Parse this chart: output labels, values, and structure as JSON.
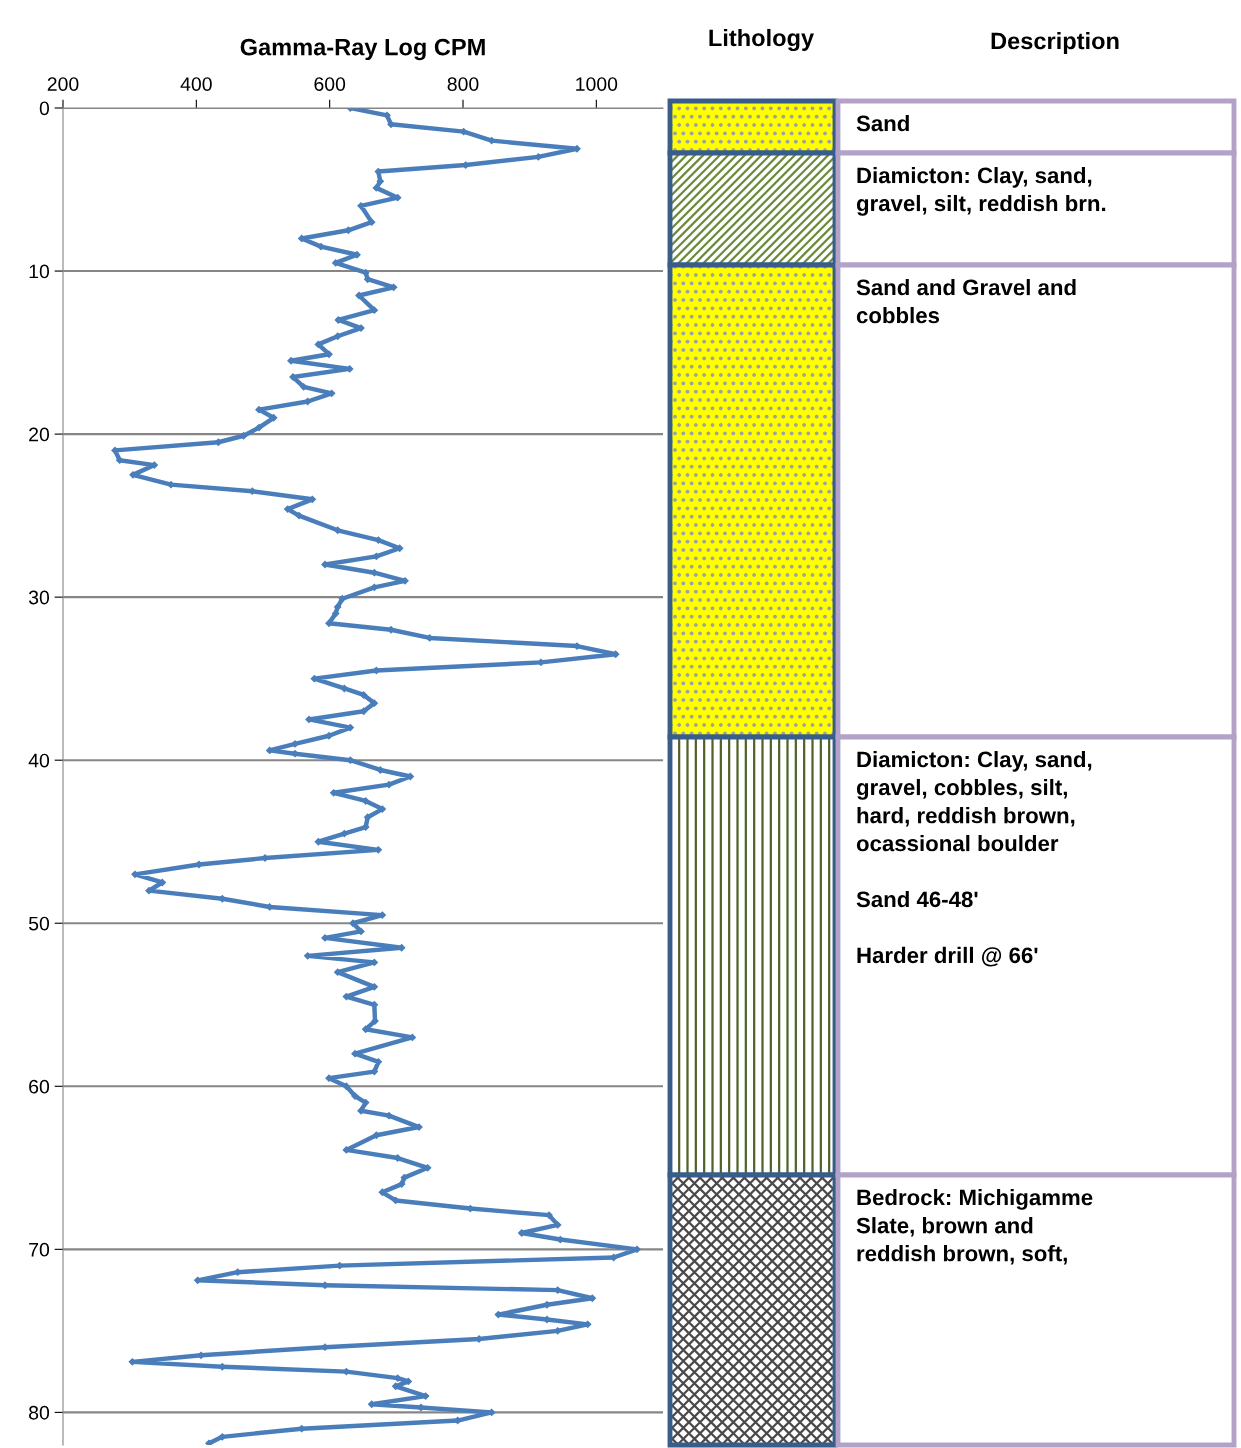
{
  "chart_data": [
    {
      "type": "line",
      "title": "Gamma-Ray Log CPM",
      "color": "#4a7ebb",
      "marker": "diamond",
      "line_style": "solid",
      "grid": "y",
      "xlim": [
        200,
        1100
      ],
      "xticks": [
        200,
        400,
        600,
        800,
        1000
      ],
      "ylim": [
        82,
        0
      ],
      "yticks": [
        0,
        10,
        20,
        30,
        40,
        50,
        60,
        70,
        80
      ],
      "x": [
        631,
        686,
        692,
        801,
        843,
        971,
        913,
        804,
        673,
        676,
        670,
        702,
        647,
        663,
        628,
        558,
        587,
        641,
        609,
        654,
        657,
        696,
        644,
        667,
        613,
        647,
        612,
        583,
        599,
        542,
        630,
        545,
        561,
        603,
        567,
        494,
        516,
        494,
        471,
        433,
        278,
        285,
        337,
        305,
        362,
        484,
        574,
        537,
        554,
        612,
        673,
        705,
        670,
        593,
        667,
        713,
        667,
        619,
        612,
        609,
        599,
        692,
        750,
        971,
        1029,
        917,
        670,
        577,
        622,
        651,
        667,
        651,
        569,
        631,
        599,
        548,
        510,
        548,
        631,
        676,
        721,
        689,
        606,
        654,
        679,
        657,
        654,
        622,
        583,
        673,
        503,
        404,
        308,
        349,
        329,
        439,
        510,
        679,
        635,
        647,
        593,
        708,
        567,
        667,
        612,
        667,
        625,
        667,
        668,
        654,
        724,
        638,
        673,
        667,
        599,
        625,
        638,
        654,
        647,
        689,
        734,
        670,
        625,
        702,
        747,
        712,
        708,
        679,
        699,
        811,
        929,
        942,
        888,
        946,
        1061,
        1026,
        615,
        462,
        402,
        593,
        942,
        994,
        926,
        853,
        926,
        987,
        942,
        824,
        593,
        407,
        304,
        439,
        625,
        702,
        718,
        699,
        744,
        663,
        737,
        843,
        792,
        558,
        439,
        419
      ],
      "values": [
        0,
        0.45,
        1.0,
        1.45,
        2.0,
        2.5,
        3.0,
        3.5,
        3.9,
        4.5,
        4.9,
        5.5,
        6.0,
        7.0,
        7.5,
        8.0,
        8.5,
        9.0,
        9.5,
        10.1,
        10.5,
        11.0,
        11.5,
        12.4,
        13.0,
        13.5,
        14.0,
        14.5,
        15.1,
        15.5,
        16.0,
        16.5,
        17.1,
        17.5,
        18.0,
        18.5,
        19.0,
        19.6,
        20.1,
        20.5,
        21.0,
        21.6,
        21.9,
        22.5,
        23.1,
        23.5,
        24.0,
        24.6,
        25.0,
        25.9,
        26.5,
        27.0,
        27.5,
        28.0,
        28.5,
        29.0,
        29.4,
        30.1,
        30.6,
        31.0,
        31.6,
        32.0,
        32.5,
        33.0,
        33.5,
        34.0,
        34.5,
        35.0,
        35.6,
        36.0,
        36.5,
        37.0,
        37.5,
        38.0,
        38.5,
        39.0,
        39.4,
        39.6,
        40.0,
        40.6,
        41.0,
        41.5,
        42.0,
        42.5,
        43.0,
        43.5,
        44.1,
        44.5,
        45.0,
        45.5,
        46.0,
        46.4,
        47.0,
        47.5,
        48.0,
        48.5,
        49.0,
        49.5,
        50.0,
        50.5,
        50.9,
        51.5,
        52.0,
        52.4,
        53.0,
        53.9,
        54.5,
        55.0,
        56.0,
        56.5,
        57.0,
        58.0,
        58.5,
        59.1,
        59.5,
        60.0,
        60.6,
        61.0,
        61.5,
        61.8,
        62.5,
        63.0,
        63.9,
        64.4,
        65.0,
        65.6,
        66.0,
        66.5,
        67.0,
        67.5,
        67.9,
        68.5,
        69.0,
        69.4,
        70.0,
        70.5,
        71.0,
        71.4,
        71.9,
        72.2,
        72.5,
        73.0,
        73.4,
        74.0,
        74.3,
        74.6,
        75.0,
        75.5,
        76.0,
        76.5,
        76.9,
        77.2,
        77.5,
        77.9,
        78.1,
        78.4,
        79.0,
        79.5,
        79.7,
        80.0,
        80.5,
        81.0,
        81.5,
        81.9
      ]
    },
    {
      "type": "other",
      "title": "Lithology"
    },
    {
      "type": "other",
      "title": "Description",
      "annotations": [
        "Sand",
        "Diamicton: Clay, sand,\ngravel, silt, reddish brn.",
        "Sand and Gravel and\ncobbles",
        "Diamicton: Clay, sand,\ngravel, cobbles, silt,\nhard, reddish brown,\nocassional boulder\n\nSand 46-48'\n\nHarder drill @ 66'",
        "Bedrock: Michigamme\nSlate, brown and\nreddish brown, soft,"
      ]
    }
  ]
}
